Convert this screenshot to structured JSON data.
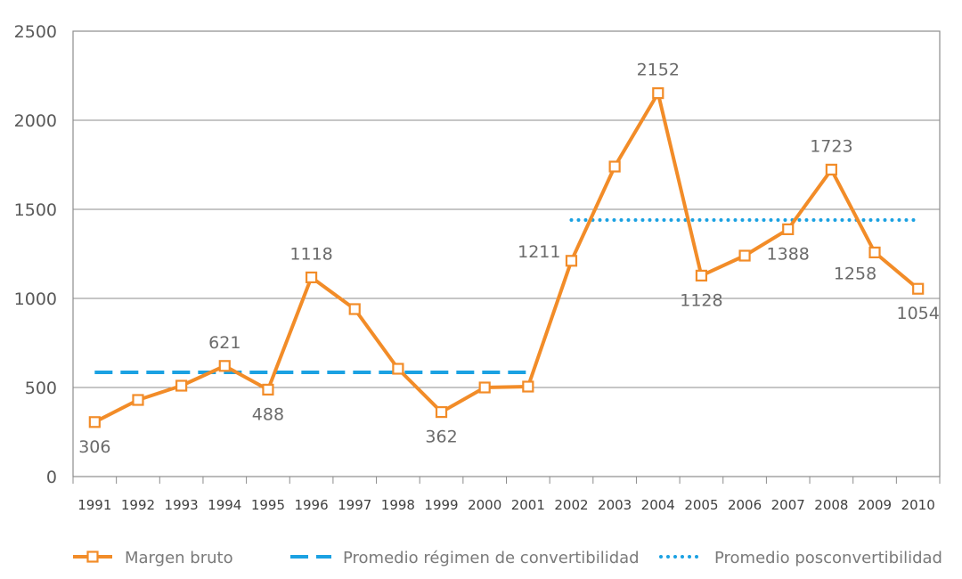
{
  "chart_data": {
    "type": "line",
    "title": "",
    "xlabel": "",
    "ylabel": "",
    "ylim": [
      0,
      2500
    ],
    "yticks": [
      0,
      500,
      1000,
      1500,
      2000,
      2500
    ],
    "grid": true,
    "legend_position": "bottom",
    "x": [
      "1991",
      "1992",
      "1993",
      "1994",
      "1995",
      "1996",
      "1997",
      "1998",
      "1999",
      "2000",
      "2001",
      "2002",
      "2003",
      "2004",
      "2005",
      "2006",
      "2007",
      "2008",
      "2009",
      "2010"
    ],
    "series": [
      {
        "name": "Margen bruto",
        "color": "#F28C28",
        "style": "solid-with-square-markers",
        "values": [
          306,
          430,
          510,
          621,
          488,
          1118,
          940,
          605,
          362,
          500,
          505,
          1211,
          1740,
          2152,
          1128,
          1240,
          1388,
          1723,
          1258,
          1054
        ]
      },
      {
        "name": "Promedio régimen de convertibilidad",
        "color": "#1BA1E2",
        "style": "dashed",
        "x_range": [
          "1991",
          "2001"
        ],
        "value": 585
      },
      {
        "name": "Promedio posconvertibilidad",
        "color": "#1BA1E2",
        "style": "dotted",
        "x_range": [
          "2002",
          "2010"
        ],
        "value": 1440
      }
    ],
    "data_labels": [
      {
        "x": "1991",
        "text": "306",
        "pos": "below"
      },
      {
        "x": "1994",
        "text": "621",
        "pos": "above"
      },
      {
        "x": "1995",
        "text": "488",
        "pos": "below"
      },
      {
        "x": "1996",
        "text": "1118",
        "pos": "above"
      },
      {
        "x": "1999",
        "text": "362",
        "pos": "below"
      },
      {
        "x": "2002",
        "text": "1211",
        "pos": "left"
      },
      {
        "x": "2004",
        "text": "2152",
        "pos": "above"
      },
      {
        "x": "2005",
        "text": "1128",
        "pos": "below"
      },
      {
        "x": "2007",
        "text": "1388",
        "pos": "below"
      },
      {
        "x": "2008",
        "text": "1723",
        "pos": "above"
      },
      {
        "x": "2009",
        "text": "1258",
        "pos": "below-left"
      },
      {
        "x": "2010",
        "text": "1054",
        "pos": "below"
      }
    ]
  }
}
